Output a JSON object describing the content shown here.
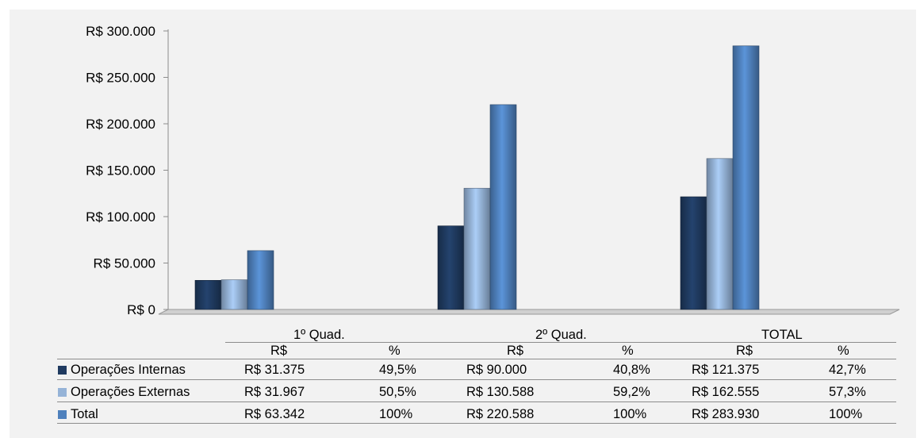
{
  "chart_data": {
    "type": "bar",
    "categories": [
      "1º Quad.",
      "2º Quad.",
      "TOTAL"
    ],
    "series": [
      {
        "name": "Operações Internas",
        "values": [
          31375,
          90000,
          121375
        ],
        "color": "#1f3a60"
      },
      {
        "name": "Operações Externas",
        "values": [
          31967,
          130588,
          162555
        ],
        "color": "#95b3d7"
      },
      {
        "name": "Total",
        "values": [
          63342,
          220588,
          283930
        ],
        "color": "#4f81bd"
      }
    ],
    "ylim": [
      0,
      300000
    ],
    "yticks": [
      "R$ 0",
      "R$ 50.000",
      "R$ 100.000",
      "R$ 150.000",
      "R$ 200.000",
      "R$ 250.000",
      "R$ 300.000"
    ],
    "grid": false,
    "legend": "table-bottom"
  },
  "table": {
    "col_headers": [
      "R$",
      "%",
      "R$",
      "%",
      "R$",
      "%"
    ],
    "rows": [
      {
        "label": "Operações Internas",
        "cells": [
          "R$ 31.375",
          "49,5%",
          "R$ 90.000",
          "40,8%",
          "R$ 121.375",
          "42,7%"
        ]
      },
      {
        "label": "Operações Externas",
        "cells": [
          "R$ 31.967",
          "50,5%",
          "R$ 130.588",
          "59,2%",
          "R$ 162.555",
          "57,3%"
        ]
      },
      {
        "label": "Total",
        "cells": [
          "R$ 63.342",
          "100%",
          "R$ 220.588",
          "100%",
          "R$ 283.930",
          "100%"
        ]
      }
    ]
  }
}
